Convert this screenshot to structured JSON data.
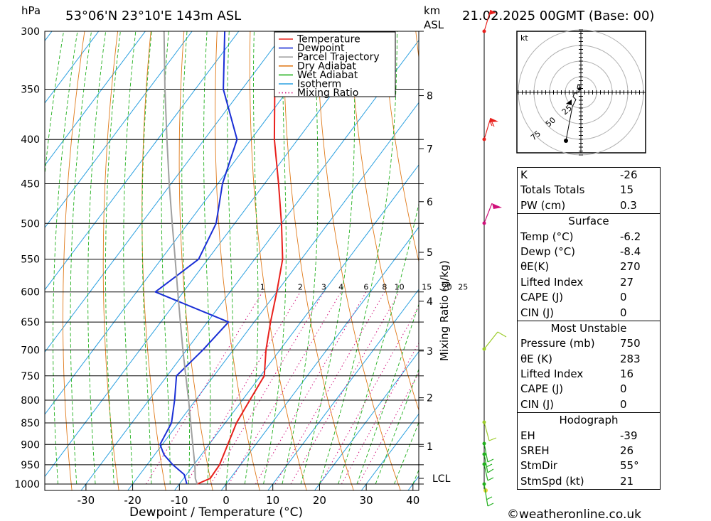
{
  "header": {
    "hpa_label": "hPa",
    "location": "53°06'N  23°10'E  143m  ASL",
    "km_label": "km",
    "asl_label": "ASL",
    "datetime": "21.02.2025  00GMT  (Base: 00)"
  },
  "legend": [
    {
      "label": "Temperature",
      "color": "#e8201c",
      "style": "solid"
    },
    {
      "label": "Dewpoint",
      "color": "#1a2fd6",
      "style": "solid"
    },
    {
      "label": "Parcel Trajectory",
      "color": "#a0a0a0",
      "style": "solid"
    },
    {
      "label": "Dry Adiabat",
      "color": "#e07a1a",
      "style": "solid"
    },
    {
      "label": "Wet Adiabat",
      "color": "#22b01e",
      "style": "solid"
    },
    {
      "label": "Isotherm",
      "color": "#2aa0e0",
      "style": "solid"
    },
    {
      "label": "Mixing Ratio",
      "color": "#d0107a",
      "style": "dotted"
    }
  ],
  "chart_data": {
    "type": "line",
    "chart_kind": "skew-T log-p diagram",
    "xlabel": "Dewpoint / Temperature (°C)",
    "ylabel": "hPa",
    "x_ticks": [
      "-30",
      "-20",
      "-10",
      "0",
      "10",
      "20",
      "30",
      "40"
    ],
    "pressure_levels": [
      "300",
      "350",
      "400",
      "450",
      "500",
      "550",
      "600",
      "650",
      "700",
      "750",
      "800",
      "850",
      "900",
      "950",
      "1000"
    ],
    "height_km_ticks": [
      {
        "label": "8",
        "p": 356
      },
      {
        "label": "7",
        "p": 410
      },
      {
        "label": "6",
        "p": 472
      },
      {
        "label": "5",
        "p": 540
      },
      {
        "label": "4",
        "p": 615
      },
      {
        "label": "3",
        "p": 702
      },
      {
        "label": "2",
        "p": 795
      },
      {
        "label": "1",
        "p": 905
      },
      {
        "label": "LCL",
        "p": 985
      }
    ],
    "mixing_ratio_axis_label": "Mixing Ratio (g/kg)",
    "mixing_ratio_labels": [
      "1",
      "2",
      "3",
      "4",
      "6",
      "8",
      "10",
      "15",
      "20",
      "25"
    ],
    "series": [
      {
        "name": "Temperature",
        "color": "#e8201c",
        "points": [
          [
            1000,
            -6.2
          ],
          [
            985,
            -4.3
          ],
          [
            950,
            -4.5
          ],
          [
            900,
            -6.0
          ],
          [
            850,
            -7.6
          ],
          [
            800,
            -8.4
          ],
          [
            750,
            -9.2
          ],
          [
            700,
            -13.0
          ],
          [
            650,
            -16.5
          ],
          [
            600,
            -20.0
          ],
          [
            550,
            -24.0
          ],
          [
            500,
            -30.0
          ],
          [
            450,
            -37.0
          ],
          [
            400,
            -45.0
          ],
          [
            350,
            -53.0
          ],
          [
            300,
            -61.0
          ]
        ]
      },
      {
        "name": "Dewpoint",
        "color": "#1a2fd6",
        "points": [
          [
            1000,
            -8.4
          ],
          [
            975,
            -10.5
          ],
          [
            950,
            -14.5
          ],
          [
            925,
            -18.0
          ],
          [
            900,
            -20.5
          ],
          [
            850,
            -21.5
          ],
          [
            800,
            -24.5
          ],
          [
            750,
            -28.0
          ],
          [
            700,
            -26.5
          ],
          [
            650,
            -25.5
          ],
          [
            600,
            -46.0
          ],
          [
            550,
            -42.0
          ],
          [
            500,
            -44.0
          ],
          [
            450,
            -49.0
          ],
          [
            400,
            -53.0
          ],
          [
            350,
            -64.0
          ],
          [
            300,
            -73.0
          ]
        ]
      },
      {
        "name": "Parcel Trajectory",
        "color": "#a0a0a0",
        "points": [
          [
            1000,
            -6.2
          ],
          [
            985,
            -7.5
          ],
          [
            950,
            -9.8
          ],
          [
            900,
            -13.5
          ],
          [
            850,
            -17.4
          ],
          [
            800,
            -21.5
          ],
          [
            750,
            -26.0
          ],
          [
            700,
            -30.8
          ],
          [
            650,
            -35.8
          ],
          [
            600,
            -41.2
          ],
          [
            550,
            -47.0
          ],
          [
            500,
            -53.4
          ],
          [
            450,
            -60.4
          ],
          [
            400,
            -68.0
          ],
          [
            350,
            -76.5
          ],
          [
            300,
            -86.0
          ]
        ]
      }
    ],
    "grid": true
  },
  "hodograph": {
    "unit_label": "kt",
    "ring_labels": [
      "25",
      "50",
      "75"
    ]
  },
  "indices": [
    {
      "label": "K",
      "value": "-26"
    },
    {
      "label": "Totals Totals",
      "value": "15"
    },
    {
      "label": "PW (cm)",
      "value": "0.3"
    }
  ],
  "surface": {
    "title": "Surface",
    "rows": [
      {
        "label": "Temp (°C)",
        "value": "-6.2"
      },
      {
        "label": "Dewp (°C)",
        "value": "-8.4"
      },
      {
        "label": "θE(K)",
        "value": "270"
      },
      {
        "label": "Lifted Index",
        "value": "27"
      },
      {
        "label": "CAPE (J)",
        "value": "0"
      },
      {
        "label": "CIN (J)",
        "value": "0"
      }
    ]
  },
  "most_unstable": {
    "title": "Most Unstable",
    "rows": [
      {
        "label": "Pressure (mb)",
        "value": "750"
      },
      {
        "label": "θE (K)",
        "value": "283"
      },
      {
        "label": "Lifted Index",
        "value": "16"
      },
      {
        "label": "CAPE (J)",
        "value": "0"
      },
      {
        "label": "CIN (J)",
        "value": "0"
      }
    ]
  },
  "hodograph_stats": {
    "title": "Hodograph",
    "rows": [
      {
        "label": "EH",
        "value": "-39"
      },
      {
        "label": "SREH",
        "value": "26"
      },
      {
        "label": "StmDir",
        "value": "55°"
      },
      {
        "label": "StmSpd (kt)",
        "value": "21"
      }
    ]
  },
  "footer": {
    "copyright": "©weatheronline.co.uk"
  }
}
